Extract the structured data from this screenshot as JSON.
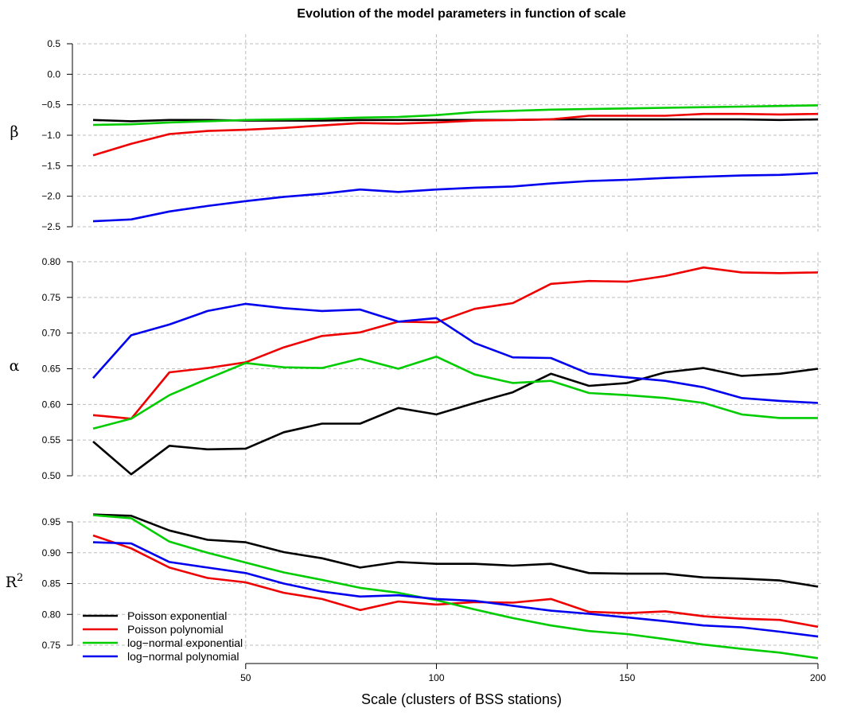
{
  "chart_data": {
    "type": "line",
    "title": "Evolution of the model parameters in function of scale",
    "xlabel": "Scale (clusters of BSS stations)",
    "x": [
      10,
      20,
      30,
      40,
      50,
      60,
      70,
      80,
      90,
      100,
      110,
      120,
      130,
      140,
      150,
      160,
      170,
      180,
      190,
      200
    ],
    "xlim": [
      10,
      200
    ],
    "xticks": [
      "50",
      "100",
      "150",
      "200"
    ],
    "grid": true,
    "legend_placement": "bottom-left (in R² panel)",
    "legend": [
      "Poisson exponential",
      "Poisson polynomial",
      "log−normal exponential",
      "log−normal polynomial"
    ],
    "colors": [
      "#000000",
      "#ee0000",
      "#00cc00",
      "#0000ee"
    ],
    "panels": [
      {
        "ylabel": "β",
        "ylim": [
          -2.5,
          0.5
        ],
        "yticks": [
          "0.5",
          "0.0",
          "−0.5",
          "−1.0",
          "−1.5",
          "−2.0",
          "−2.5"
        ],
        "series": [
          {
            "name": "Poisson exponential",
            "values": [
              -0.75,
              -0.77,
              -0.75,
              -0.75,
              -0.76,
              -0.76,
              -0.76,
              -0.75,
              -0.75,
              -0.75,
              -0.75,
              -0.75,
              -0.74,
              -0.74,
              -0.74,
              -0.74,
              -0.74,
              -0.74,
              -0.75,
              -0.74
            ]
          },
          {
            "name": "Poisson polynomial",
            "values": [
              -1.33,
              -1.14,
              -0.98,
              -0.93,
              -0.91,
              -0.88,
              -0.84,
              -0.8,
              -0.81,
              -0.79,
              -0.76,
              -0.75,
              -0.74,
              -0.68,
              -0.68,
              -0.68,
              -0.65,
              -0.65,
              -0.66,
              -0.65
            ]
          },
          {
            "name": "log−normal exponential",
            "values": [
              -0.83,
              -0.82,
              -0.79,
              -0.77,
              -0.75,
              -0.74,
              -0.73,
              -0.71,
              -0.7,
              -0.67,
              -0.62,
              -0.6,
              -0.58,
              -0.57,
              -0.56,
              -0.55,
              -0.54,
              -0.53,
              -0.52,
              -0.51
            ]
          },
          {
            "name": "log−normal polynomial",
            "values": [
              -2.41,
              -2.38,
              -2.25,
              -2.16,
              -2.08,
              -2.01,
              -1.96,
              -1.89,
              -1.93,
              -1.89,
              -1.86,
              -1.84,
              -1.79,
              -1.75,
              -1.73,
              -1.7,
              -1.68,
              -1.66,
              -1.65,
              -1.62
            ]
          }
        ]
      },
      {
        "ylabel": "α",
        "ylim": [
          0.5,
          0.8
        ],
        "yticks": [
          "0.80",
          "0.75",
          "0.70",
          "0.65",
          "0.60",
          "0.55",
          "0.50"
        ],
        "series": [
          {
            "name": "Poisson exponential",
            "values": [
              0.548,
              0.502,
              0.542,
              0.537,
              0.538,
              0.561,
              0.573,
              0.573,
              0.595,
              0.586,
              0.602,
              0.617,
              0.643,
              0.626,
              0.63,
              0.645,
              0.651,
              0.64,
              0.643,
              0.65
            ]
          },
          {
            "name": "Poisson polynomial",
            "values": [
              0.585,
              0.58,
              0.645,
              0.651,
              0.659,
              0.68,
              0.696,
              0.701,
              0.716,
              0.715,
              0.734,
              0.742,
              0.769,
              0.773,
              0.772,
              0.78,
              0.792,
              0.785,
              0.784,
              0.785
            ]
          },
          {
            "name": "log−normal exponential",
            "values": [
              0.566,
              0.58,
              0.613,
              0.636,
              0.658,
              0.652,
              0.651,
              0.664,
              0.65,
              0.667,
              0.642,
              0.63,
              0.633,
              0.616,
              0.613,
              0.609,
              0.602,
              0.586,
              0.581,
              0.581
            ]
          },
          {
            "name": "log−normal polynomial",
            "values": [
              0.637,
              0.697,
              0.712,
              0.731,
              0.741,
              0.735,
              0.731,
              0.733,
              0.716,
              0.721,
              0.686,
              0.666,
              0.665,
              0.643,
              0.638,
              0.633,
              0.624,
              0.609,
              0.605,
              0.602
            ]
          }
        ]
      },
      {
        "ylabel": "R²",
        "ylim": [
          0.73,
          0.96
        ],
        "yticks": [
          "0.95",
          "0.90",
          "0.85",
          "0.80",
          "0.75"
        ],
        "series": [
          {
            "name": "Poisson exponential",
            "values": [
              0.962,
              0.96,
              0.936,
              0.921,
              0.917,
              0.901,
              0.891,
              0.876,
              0.885,
              0.882,
              0.882,
              0.879,
              0.882,
              0.867,
              0.866,
              0.866,
              0.86,
              0.858,
              0.855,
              0.845
            ]
          },
          {
            "name": "Poisson polynomial",
            "values": [
              0.928,
              0.907,
              0.876,
              0.859,
              0.852,
              0.835,
              0.825,
              0.807,
              0.821,
              0.816,
              0.82,
              0.819,
              0.825,
              0.804,
              0.802,
              0.805,
              0.797,
              0.793,
              0.791,
              0.78
            ]
          },
          {
            "name": "log−normal exponential",
            "values": [
              0.961,
              0.956,
              0.918,
              0.9,
              0.884,
              0.868,
              0.856,
              0.843,
              0.835,
              0.823,
              0.808,
              0.794,
              0.782,
              0.773,
              0.768,
              0.76,
              0.751,
              0.744,
              0.738,
              0.729
            ]
          },
          {
            "name": "log−normal polynomial",
            "values": [
              0.917,
              0.915,
              0.885,
              0.876,
              0.867,
              0.85,
              0.837,
              0.829,
              0.831,
              0.825,
              0.822,
              0.814,
              0.806,
              0.801,
              0.795,
              0.789,
              0.782,
              0.779,
              0.772,
              0.764
            ]
          }
        ]
      }
    ]
  }
}
